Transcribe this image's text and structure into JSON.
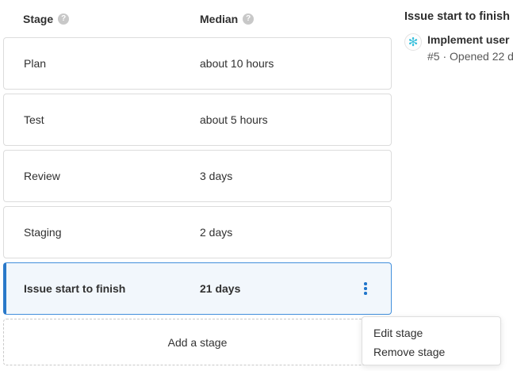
{
  "stage_table": {
    "headers": {
      "stage": "Stage",
      "median": "Median",
      "help_glyph": "?"
    },
    "rows": [
      {
        "stage": "Plan",
        "median": "about 10 hours",
        "selected": false
      },
      {
        "stage": "Test",
        "median": "about 5 hours",
        "selected": false
      },
      {
        "stage": "Review",
        "median": "3 days",
        "selected": false
      },
      {
        "stage": "Staging",
        "median": "2 days",
        "selected": false
      },
      {
        "stage": "Issue start to finish",
        "median": "21 days",
        "selected": true
      }
    ],
    "add_stage_label": "Add a stage"
  },
  "detail_panel": {
    "title": "Issue start to finish",
    "issue": {
      "title": "Implement user",
      "meta": "#5 · Opened 22 d",
      "avatar_glyph": "✻"
    }
  },
  "context_menu": {
    "items": [
      {
        "label": "Edit stage"
      },
      {
        "label": "Remove stage"
      }
    ]
  },
  "colors": {
    "accent_blue": "#1f75cb",
    "selected_row_bg": "#f2f7fc",
    "selected_row_border": "#428fdc",
    "card_border": "#dcdcdc",
    "avatar_cyan": "#35bfdc"
  }
}
